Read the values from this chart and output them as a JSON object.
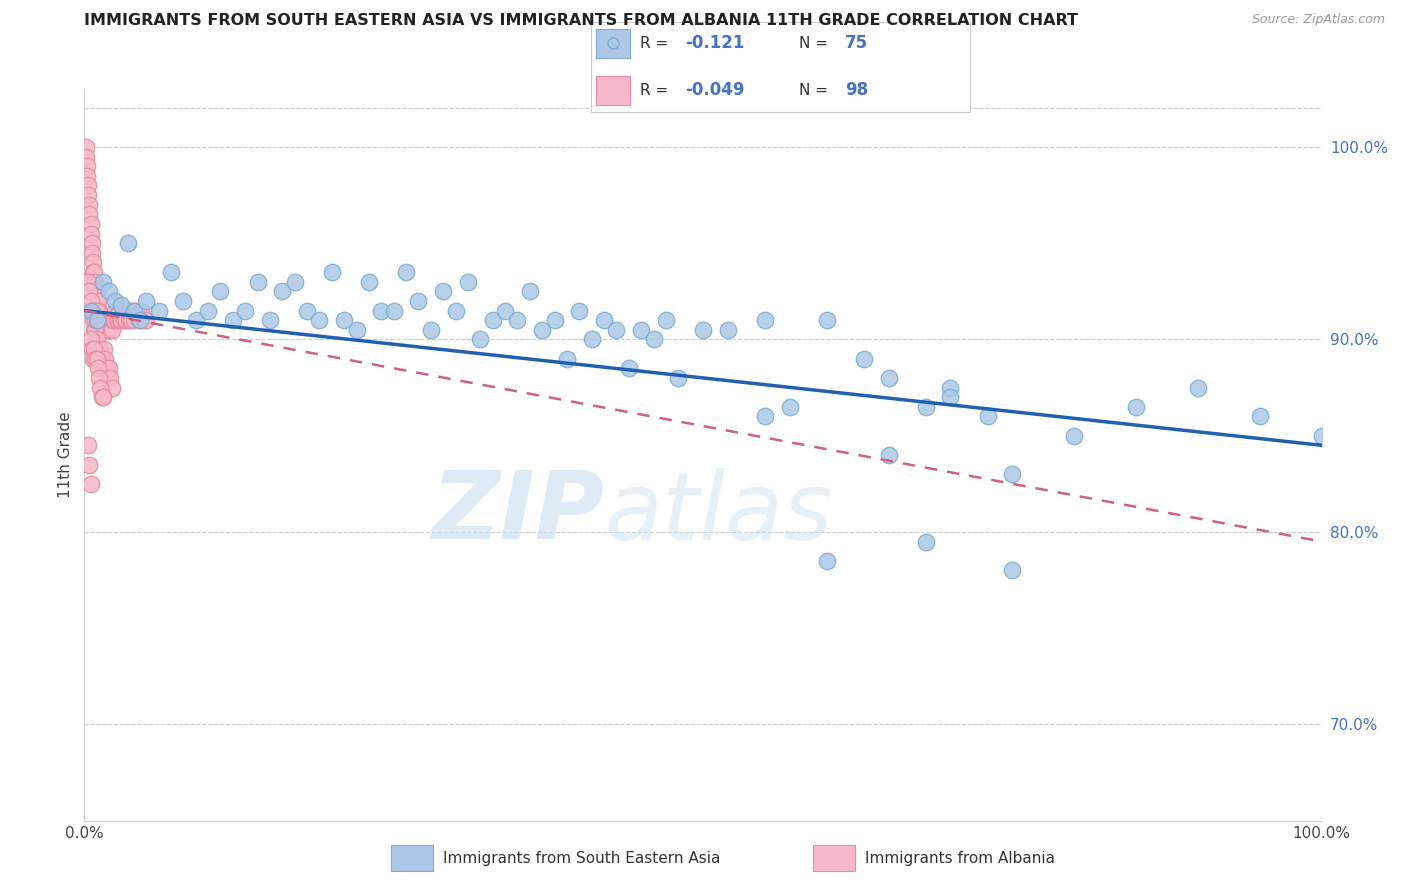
{
  "title": "IMMIGRANTS FROM SOUTH EASTERN ASIA VS IMMIGRANTS FROM ALBANIA 11TH GRADE CORRELATION CHART",
  "source": "Source: ZipAtlas.com",
  "ylabel": "11th Grade",
  "right_yticks": [
    100.0,
    90.0,
    80.0,
    70.0
  ],
  "right_ytick_labels": [
    "100.0%",
    "90.0%",
    "80.0%",
    "70.0%"
  ],
  "watermark_zip": "ZIP",
  "watermark_atlas": "atlas",
  "bottom_label_blue": "Immigrants from South Eastern Asia",
  "bottom_label_pink": "Immigrants from Albania",
  "blue_color": "#adc8e6",
  "pink_color": "#f5b8c8",
  "blue_edge_color": "#7aadd4",
  "pink_edge_color": "#e88aa0",
  "blue_line_color": "#2060b0",
  "pink_line_color": "#d06080",
  "blue_scatter_x": [
    0.5,
    1.0,
    1.5,
    2.0,
    2.5,
    3.0,
    3.5,
    4.0,
    4.5,
    5.0,
    6.0,
    7.0,
    8.0,
    9.0,
    10.0,
    11.0,
    12.0,
    13.0,
    14.0,
    15.0,
    16.0,
    17.0,
    18.0,
    19.0,
    20.0,
    21.0,
    22.0,
    23.0,
    24.0,
    25.0,
    26.0,
    27.0,
    28.0,
    29.0,
    30.0,
    31.0,
    32.0,
    33.0,
    34.0,
    35.0,
    36.0,
    37.0,
    38.0,
    39.0,
    40.0,
    41.0,
    42.0,
    43.0,
    44.0,
    45.0,
    46.0,
    47.0,
    48.0,
    50.0,
    52.0,
    55.0,
    57.0,
    60.0,
    63.0,
    65.0,
    68.0,
    70.0,
    73.0,
    75.0,
    55.0,
    60.0,
    65.0,
    68.0,
    70.0,
    75.0,
    80.0,
    85.0,
    90.0,
    95.0,
    100.0
  ],
  "blue_scatter_y": [
    91.5,
    91.0,
    93.0,
    92.5,
    92.0,
    91.8,
    95.0,
    91.5,
    91.0,
    92.0,
    91.5,
    93.5,
    92.0,
    91.0,
    91.5,
    92.5,
    91.0,
    91.5,
    93.0,
    91.0,
    92.5,
    93.0,
    91.5,
    91.0,
    93.5,
    91.0,
    90.5,
    93.0,
    91.5,
    91.5,
    93.5,
    92.0,
    90.5,
    92.5,
    91.5,
    93.0,
    90.0,
    91.0,
    91.5,
    91.0,
    92.5,
    90.5,
    91.0,
    89.0,
    91.5,
    90.0,
    91.0,
    90.5,
    88.5,
    90.5,
    90.0,
    91.0,
    88.0,
    90.5,
    90.5,
    91.0,
    86.5,
    91.0,
    89.0,
    88.0,
    86.5,
    87.5,
    86.0,
    78.0,
    86.0,
    78.5,
    84.0,
    79.5,
    87.0,
    83.0,
    85.0,
    86.5,
    87.5,
    86.0,
    85.0
  ],
  "pink_scatter_x": [
    0.1,
    0.1,
    0.2,
    0.2,
    0.3,
    0.3,
    0.4,
    0.4,
    0.5,
    0.5,
    0.6,
    0.6,
    0.7,
    0.7,
    0.8,
    0.8,
    0.9,
    0.9,
    1.0,
    1.0,
    1.1,
    1.1,
    1.2,
    1.2,
    1.3,
    1.3,
    1.4,
    1.5,
    1.5,
    1.6,
    1.7,
    1.8,
    1.9,
    2.0,
    2.0,
    2.1,
    2.2,
    2.3,
    2.4,
    2.5,
    2.6,
    2.7,
    2.8,
    2.9,
    3.0,
    3.1,
    3.2,
    3.3,
    3.4,
    3.5,
    3.6,
    3.7,
    3.8,
    3.9,
    4.0,
    4.2,
    4.4,
    4.6,
    4.8,
    5.0,
    0.3,
    0.4,
    0.5,
    0.6,
    0.7,
    0.8,
    0.9,
    1.0,
    1.1,
    1.2,
    1.3,
    1.4,
    1.5,
    1.6,
    1.7,
    1.8,
    1.9,
    2.0,
    2.1,
    2.2,
    0.5,
    0.6,
    0.7,
    0.8,
    0.9,
    1.0,
    1.1,
    1.2,
    1.3,
    1.4,
    1.5,
    0.8,
    0.9,
    1.0,
    1.1,
    0.3,
    0.4,
    0.5
  ],
  "pink_scatter_y": [
    100.0,
    99.5,
    99.0,
    98.5,
    98.0,
    97.5,
    97.0,
    96.5,
    96.0,
    95.5,
    95.0,
    94.5,
    94.0,
    93.5,
    93.5,
    93.0,
    93.0,
    92.5,
    92.5,
    92.0,
    92.0,
    91.5,
    91.5,
    91.0,
    91.0,
    90.8,
    90.5,
    91.0,
    90.5,
    90.5,
    90.5,
    90.5,
    90.5,
    91.0,
    90.5,
    91.0,
    90.5,
    91.0,
    91.0,
    91.5,
    91.0,
    91.0,
    91.5,
    91.0,
    91.0,
    91.5,
    91.0,
    91.5,
    91.0,
    91.5,
    91.0,
    91.5,
    91.0,
    91.5,
    91.0,
    91.5,
    91.0,
    91.5,
    91.0,
    91.0,
    93.0,
    92.5,
    92.0,
    91.5,
    91.0,
    90.5,
    90.5,
    90.0,
    89.5,
    89.5,
    89.0,
    89.0,
    88.5,
    89.5,
    89.0,
    88.5,
    88.0,
    88.5,
    88.0,
    87.5,
    90.0,
    89.5,
    89.0,
    89.5,
    89.0,
    89.0,
    88.5,
    88.0,
    87.5,
    87.0,
    87.0,
    91.5,
    91.0,
    91.5,
    91.0,
    84.5,
    83.5,
    82.5
  ],
  "xlim": [
    0,
    100
  ],
  "ylim": [
    65,
    103
  ],
  "blue_trend_x0": 0,
  "blue_trend_x1": 100,
  "blue_trend_y0": 91.5,
  "blue_trend_y1": 84.5,
  "pink_trend_x0": 0,
  "pink_trend_x1": 100,
  "pink_trend_y0": 91.5,
  "pink_trend_y1": 79.5
}
